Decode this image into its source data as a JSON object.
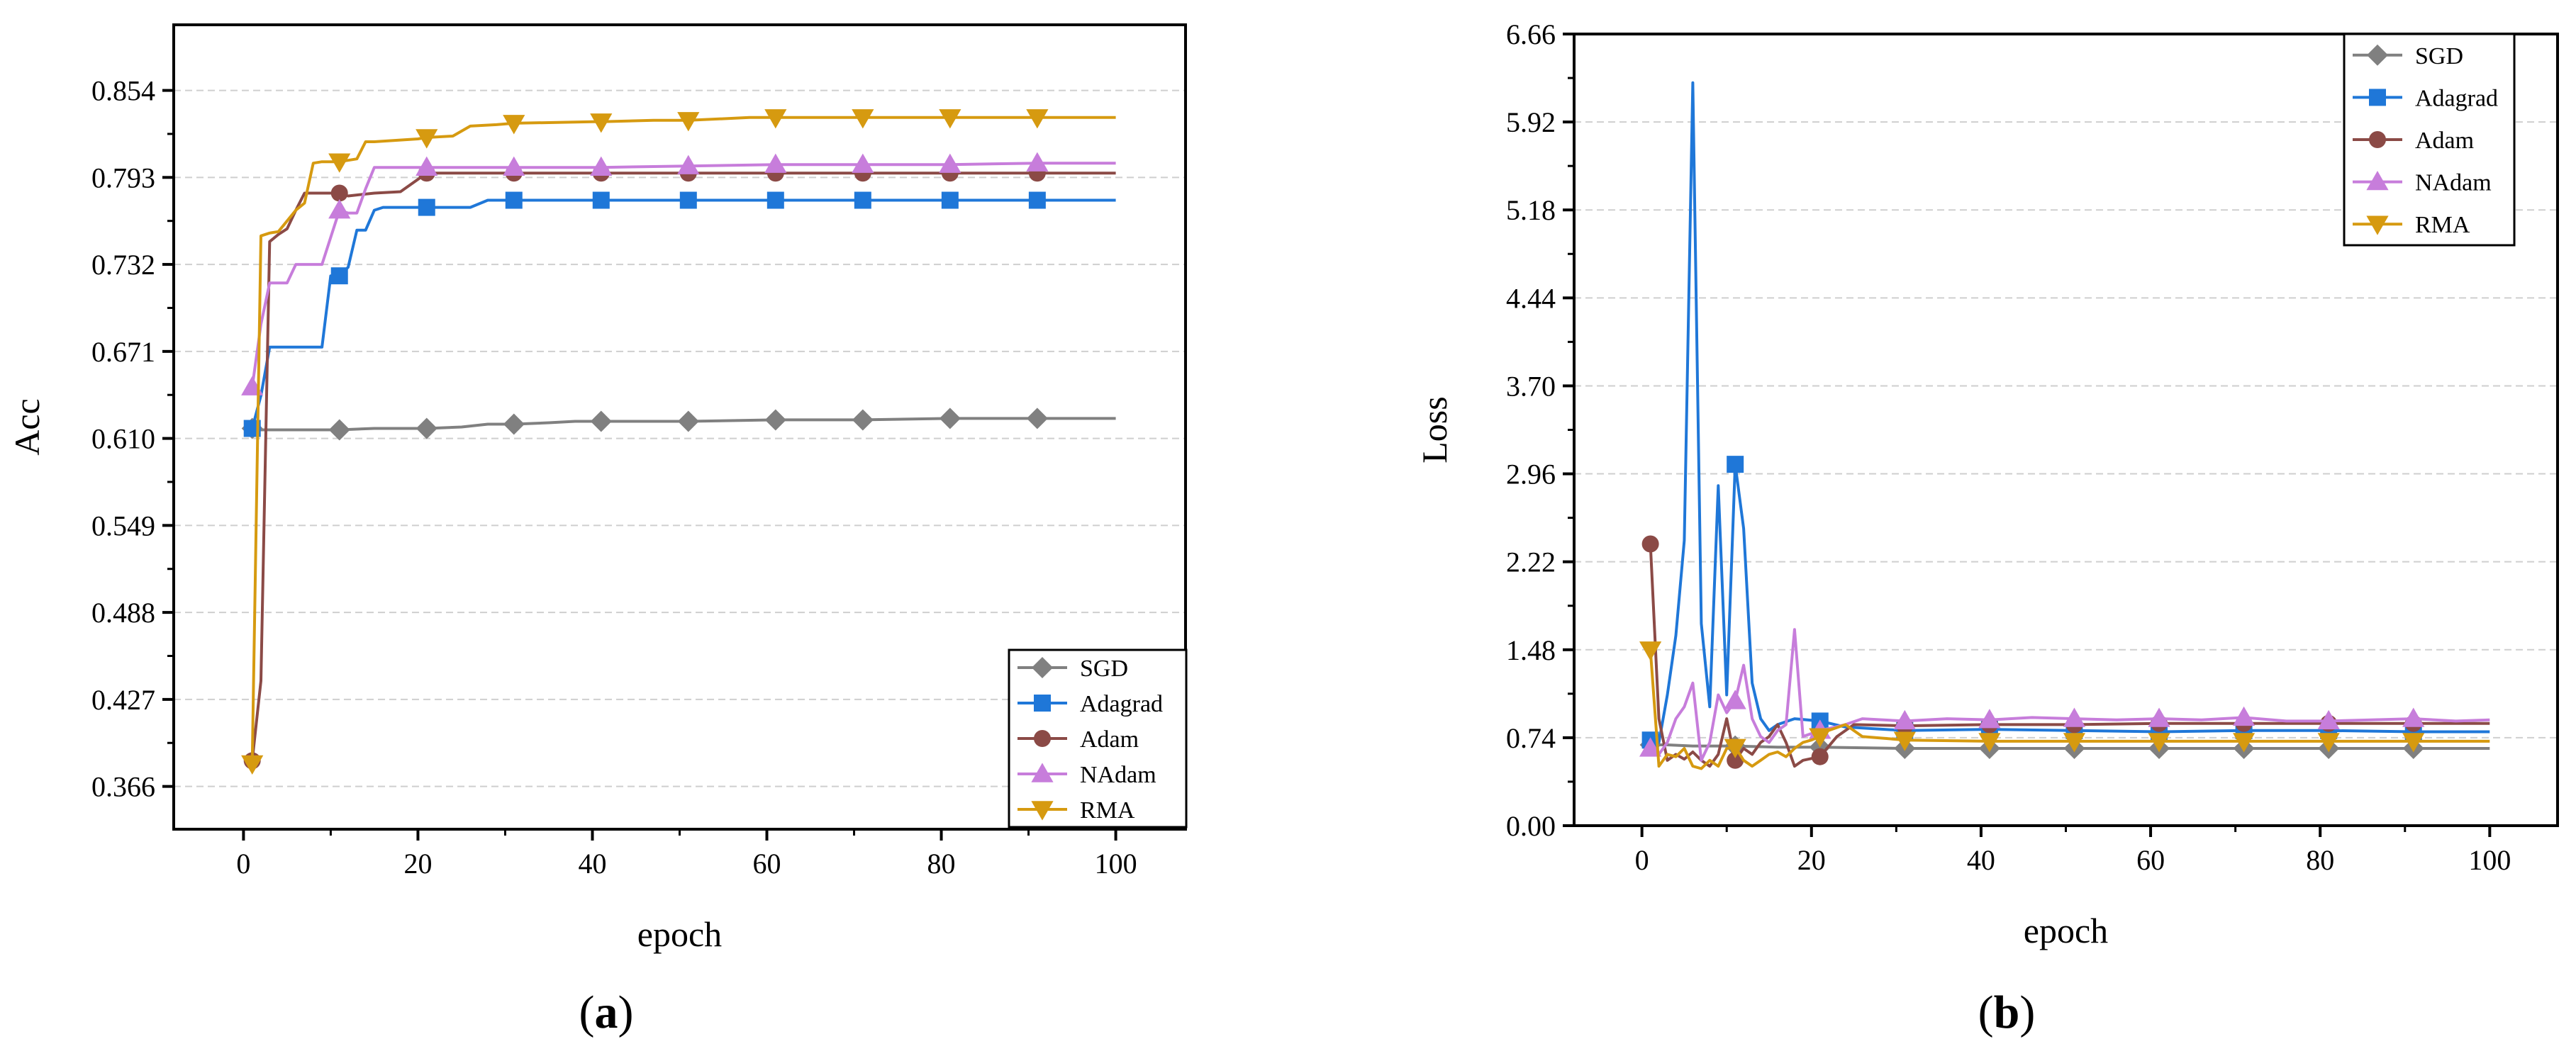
{
  "charts": [
    {
      "id": "acc",
      "caption_prefix": "(",
      "caption_letter": "a",
      "caption_suffix": ")"
    },
    {
      "id": "loss",
      "caption_prefix": "(",
      "caption_letter": "b",
      "caption_suffix": ")"
    }
  ],
  "chart_data": [
    {
      "type": "line",
      "title": "",
      "xlabel": "epoch",
      "ylabel": "Acc",
      "xlim": [
        -8,
        108
      ],
      "ylim": [
        0.336,
        0.9
      ],
      "xticks": [
        0,
        20,
        40,
        60,
        80,
        100
      ],
      "yticks": [
        0.366,
        0.427,
        0.488,
        0.549,
        0.61,
        0.671,
        0.732,
        0.793,
        0.854
      ],
      "ytick_labels": [
        "0.366",
        "0.427",
        "0.488",
        "0.549",
        "0.610",
        "0.671",
        "0.732",
        "0.793",
        "0.854"
      ],
      "grid": true,
      "legend_position": "bottom-right",
      "series": [
        {
          "name": "SGD",
          "color": "#808080",
          "marker": "diamond",
          "x": [
            1,
            2,
            5,
            11,
            15,
            21,
            25,
            28,
            31,
            35,
            38,
            41,
            51,
            61,
            71,
            81,
            91,
            100
          ],
          "y": [
            0.617,
            0.616,
            0.616,
            0.616,
            0.617,
            0.617,
            0.618,
            0.62,
            0.62,
            0.621,
            0.622,
            0.622,
            0.622,
            0.623,
            0.623,
            0.624,
            0.624,
            0.624
          ]
        },
        {
          "name": "Adagrad",
          "color": "#1f77d8",
          "marker": "square",
          "x": [
            1,
            2,
            3,
            9,
            10,
            11,
            12,
            13,
            14,
            15,
            16,
            21,
            26,
            28,
            31,
            41,
            51,
            61,
            71,
            81,
            91,
            100
          ],
          "y": [
            0.617,
            0.64,
            0.674,
            0.674,
            0.724,
            0.724,
            0.73,
            0.756,
            0.756,
            0.77,
            0.772,
            0.772,
            0.772,
            0.777,
            0.777,
            0.777,
            0.777,
            0.777,
            0.777,
            0.777,
            0.777,
            0.777
          ]
        },
        {
          "name": "Adam",
          "color": "#8b4a46",
          "marker": "circle",
          "x": [
            1,
            2,
            3,
            4,
            5,
            6,
            7,
            11,
            12,
            15,
            18,
            21,
            31,
            41,
            51,
            61,
            71,
            81,
            91,
            100
          ],
          "y": [
            0.384,
            0.44,
            0.748,
            0.753,
            0.757,
            0.77,
            0.782,
            0.782,
            0.78,
            0.782,
            0.783,
            0.796,
            0.796,
            0.796,
            0.796,
            0.796,
            0.796,
            0.796,
            0.796,
            0.796
          ]
        },
        {
          "name": "NAdam",
          "color": "#c77ddb",
          "marker": "triangle-up",
          "x": [
            1,
            2,
            3,
            5,
            6,
            8,
            9,
            11,
            12,
            13,
            14,
            15,
            21,
            31,
            41,
            51,
            61,
            71,
            81,
            91,
            100
          ],
          "y": [
            0.646,
            0.69,
            0.719,
            0.719,
            0.732,
            0.732,
            0.732,
            0.77,
            0.768,
            0.768,
            0.785,
            0.8,
            0.8,
            0.8,
            0.8,
            0.801,
            0.802,
            0.802,
            0.802,
            0.803,
            0.803
          ]
        },
        {
          "name": "RMA",
          "color": "#d69a10",
          "marker": "triangle-down",
          "x": [
            1,
            2,
            3,
            4,
            6,
            7,
            8,
            9,
            11,
            13,
            14,
            15,
            20,
            21,
            24,
            26,
            29,
            31,
            40,
            41,
            47,
            51,
            58,
            61,
            71,
            81,
            91,
            100
          ],
          "y": [
            0.382,
            0.752,
            0.754,
            0.755,
            0.77,
            0.775,
            0.803,
            0.804,
            0.804,
            0.806,
            0.818,
            0.818,
            0.82,
            0.821,
            0.822,
            0.829,
            0.83,
            0.831,
            0.832,
            0.832,
            0.833,
            0.833,
            0.835,
            0.835,
            0.835,
            0.835,
            0.835,
            0.835
          ]
        }
      ]
    },
    {
      "type": "line",
      "title": "",
      "xlabel": "epoch",
      "ylabel": "Loss",
      "xlim": [
        -8,
        108
      ],
      "ylim": [
        0,
        6.66
      ],
      "xticks": [
        0,
        20,
        40,
        60,
        80,
        100
      ],
      "yticks": [
        0.0,
        0.74,
        1.48,
        2.22,
        2.96,
        3.7,
        4.44,
        5.18,
        5.92,
        6.66
      ],
      "ytick_labels": [
        "0.00",
        "0.74",
        "1.48",
        "2.22",
        "2.96",
        "3.70",
        "4.44",
        "5.18",
        "5.92",
        "6.66"
      ],
      "grid": true,
      "legend_position": "top-right",
      "series": [
        {
          "name": "SGD",
          "color": "#808080",
          "marker": "diamond",
          "x": [
            1,
            3,
            6,
            11,
            16,
            21,
            31,
            41,
            51,
            61,
            71,
            81,
            91,
            100
          ],
          "y": [
            0.68,
            0.68,
            0.67,
            0.67,
            0.66,
            0.66,
            0.65,
            0.65,
            0.65,
            0.65,
            0.65,
            0.65,
            0.65,
            0.65
          ]
        },
        {
          "name": "Adagrad",
          "color": "#1f77d8",
          "marker": "square",
          "x": [
            1,
            2,
            3,
            4,
            5,
            6,
            7,
            8,
            9,
            10,
            11,
            12,
            13,
            14,
            15,
            16,
            18,
            21,
            24,
            31,
            41,
            51,
            61,
            71,
            81,
            91,
            100
          ],
          "y": [
            0.72,
            0.7,
            1.1,
            1.6,
            2.4,
            6.25,
            1.7,
            1.0,
            2.86,
            1.1,
            3.04,
            2.5,
            1.2,
            0.9,
            0.8,
            0.85,
            0.9,
            0.88,
            0.83,
            0.8,
            0.81,
            0.8,
            0.79,
            0.8,
            0.8,
            0.79,
            0.79
          ]
        },
        {
          "name": "Adam",
          "color": "#8b4a46",
          "marker": "circle",
          "x": [
            1,
            2,
            3,
            4,
            5,
            6,
            7,
            8,
            9,
            10,
            11,
            12,
            13,
            14,
            15,
            16,
            17,
            18,
            19,
            21,
            23,
            25,
            31,
            41,
            51,
            61,
            71,
            81,
            91,
            100
          ],
          "y": [
            2.37,
            0.9,
            0.55,
            0.6,
            0.56,
            0.62,
            0.55,
            0.5,
            0.6,
            0.9,
            0.55,
            0.65,
            0.6,
            0.7,
            0.75,
            0.85,
            0.7,
            0.5,
            0.55,
            0.58,
            0.75,
            0.85,
            0.84,
            0.85,
            0.85,
            0.86,
            0.86,
            0.86,
            0.86,
            0.86
          ]
        },
        {
          "name": "NAdam",
          "color": "#c77ddb",
          "marker": "triangle-up",
          "x": [
            1,
            2,
            3,
            4,
            5,
            6,
            7,
            8,
            9,
            10,
            11,
            12,
            13,
            14,
            15,
            16,
            17,
            18,
            19,
            21,
            24,
            26,
            31,
            36,
            41,
            46,
            51,
            56,
            61,
            66,
            71,
            76,
            81,
            86,
            91,
            96,
            100
          ],
          "y": [
            0.65,
            0.6,
            0.7,
            0.9,
            1.0,
            1.2,
            0.55,
            0.7,
            1.1,
            0.95,
            1.05,
            1.35,
            0.9,
            0.75,
            0.7,
            0.8,
            0.85,
            1.65,
            0.75,
            0.8,
            0.85,
            0.9,
            0.88,
            0.9,
            0.89,
            0.91,
            0.9,
            0.89,
            0.9,
            0.89,
            0.91,
            0.88,
            0.88,
            0.89,
            0.9,
            0.88,
            0.89
          ]
        },
        {
          "name": "RMA",
          "color": "#d69a10",
          "marker": "triangle-down",
          "x": [
            1,
            2,
            3,
            4,
            5,
            6,
            7,
            8,
            9,
            10,
            11,
            12,
            13,
            14,
            15,
            16,
            17,
            18,
            19,
            20,
            21,
            22,
            24,
            26,
            31,
            41,
            51,
            61,
            71,
            81,
            91,
            100
          ],
          "y": [
            1.48,
            0.5,
            0.6,
            0.58,
            0.65,
            0.5,
            0.48,
            0.55,
            0.5,
            0.65,
            0.66,
            0.55,
            0.5,
            0.55,
            0.6,
            0.62,
            0.58,
            0.65,
            0.7,
            0.72,
            0.75,
            0.8,
            0.85,
            0.75,
            0.72,
            0.71,
            0.71,
            0.71,
            0.71,
            0.71,
            0.71,
            0.71
          ]
        }
      ]
    }
  ]
}
